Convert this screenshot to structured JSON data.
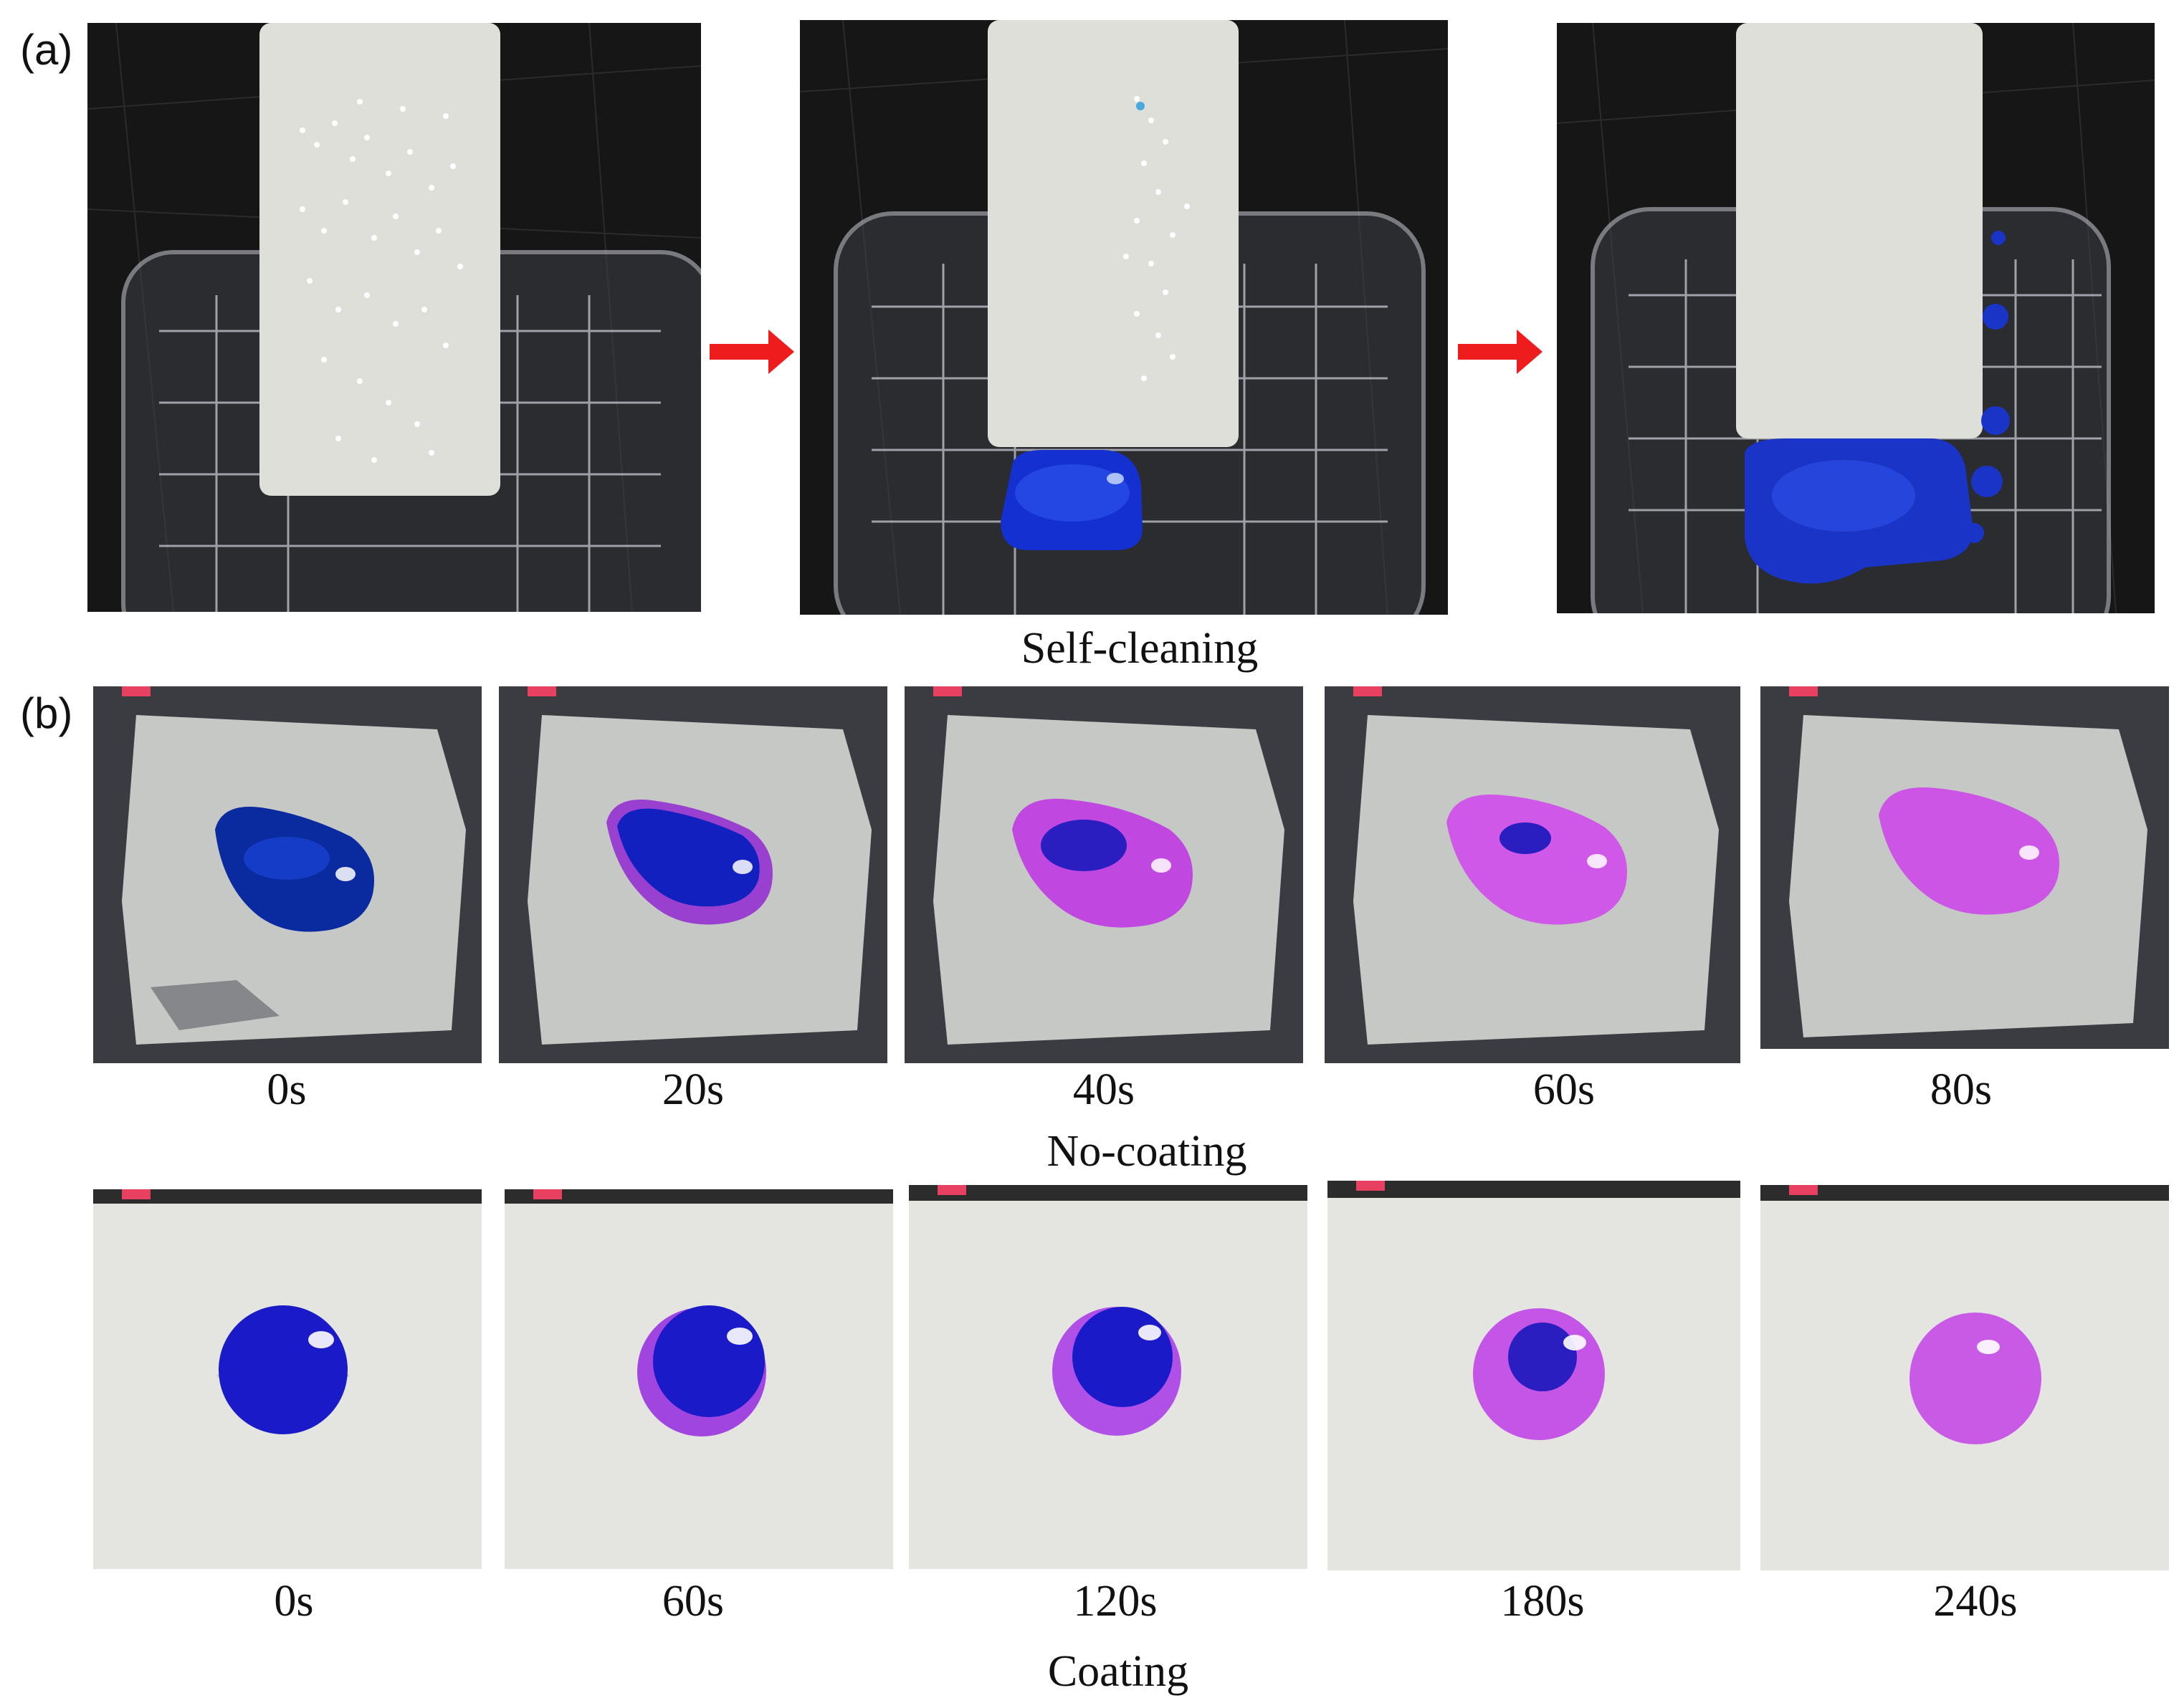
{
  "panel_a": {
    "label": "(a)",
    "caption": "Self-cleaning",
    "photos": [
      {
        "name": "self-cleaning-photo-1"
      },
      {
        "name": "self-cleaning-photo-2"
      },
      {
        "name": "self-cleaning-photo-3"
      }
    ],
    "arrow_color": "#ee1c1c"
  },
  "panel_b": {
    "label": "(b)",
    "no_coating": {
      "caption": "No-coating",
      "times": [
        "0s",
        "20s",
        "40s",
        "60s",
        "80s"
      ]
    },
    "coating": {
      "caption": "Coating",
      "times": [
        "0s",
        "60s",
        "120s",
        "180s",
        "240s"
      ]
    }
  },
  "colors": {
    "droplet_blue": "#1420c8",
    "droplet_purple": "#b03ad8",
    "background_dark": "#1a1a1a",
    "panel_white": "#e6e6e3"
  }
}
